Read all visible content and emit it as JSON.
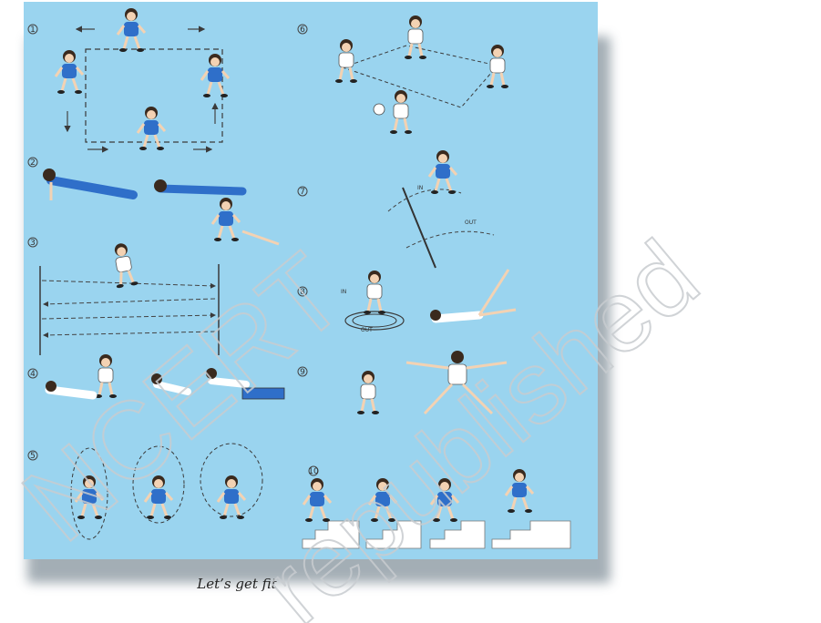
{
  "caption": "Let’s get fit",
  "panel_bg": "#9ad4ef",
  "watermark": {
    "line1": "NCERT",
    "line2": "republished",
    "color": "#c8ccd0"
  },
  "exercises": [
    {
      "number": "1"
    },
    {
      "number": "2"
    },
    {
      "number": "3"
    },
    {
      "number": "4"
    },
    {
      "number": "5"
    },
    {
      "number": "6"
    },
    {
      "number": "7"
    },
    {
      "number": "8"
    },
    {
      "number": "9"
    },
    {
      "number": "10"
    }
  ],
  "floor_labels": {
    "in_7": "IN",
    "out_7": "OUT",
    "in_8": "IN",
    "out_8": "OUT"
  }
}
